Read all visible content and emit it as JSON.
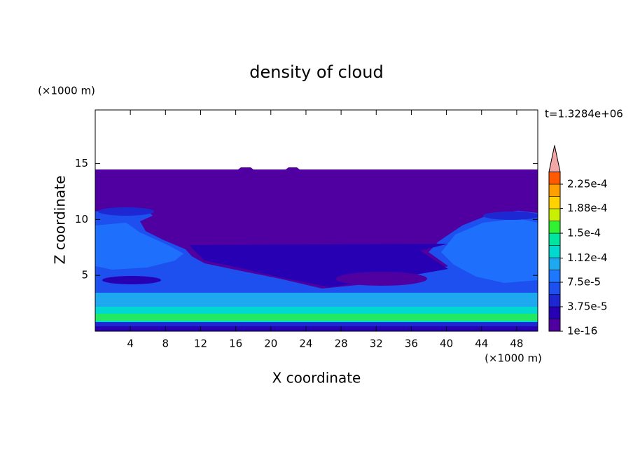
{
  "chart_data": {
    "type": "contour",
    "title": "density of cloud",
    "x_label": "X coordinate",
    "y_label": "Z coordinate",
    "x_unit": "(×1000 m)",
    "y_unit": "(×1000 m)",
    "annotation": "t=1.3284e+06",
    "xlim": [
      0,
      50.4
    ],
    "ylim": [
      0,
      19.8
    ],
    "xticks": [
      4,
      8,
      12,
      16,
      20,
      24,
      28,
      32,
      36,
      40,
      44,
      48
    ],
    "yticks": [
      5,
      10,
      15
    ],
    "colorbar": {
      "clim": [
        0,
        0.00024375
      ],
      "colors": [
        "#5000a0",
        "#2800b4",
        "#1e28d2",
        "#1e50f0",
        "#1e78ff",
        "#1ea8f0",
        "#00d8d0",
        "#00e6a0",
        "#32f032",
        "#c8f000",
        "#ffd200",
        "#ffa000",
        "#ff5a00"
      ],
      "extend_color": "#f2a6a6",
      "ticks": [
        {
          "value": 0,
          "label": "1e-16"
        },
        {
          "value": 3.75e-05,
          "label": "3.75e-5"
        },
        {
          "value": 7.5e-05,
          "label": "7.5e-5"
        },
        {
          "value": 0.000112,
          "label": "1.12e-4"
        },
        {
          "value": 0.00015,
          "label": "1.5e-4"
        },
        {
          "value": 0.000188,
          "label": "1.88e-4"
        },
        {
          "value": 0.000225,
          "label": "2.25e-4"
        }
      ]
    }
  }
}
